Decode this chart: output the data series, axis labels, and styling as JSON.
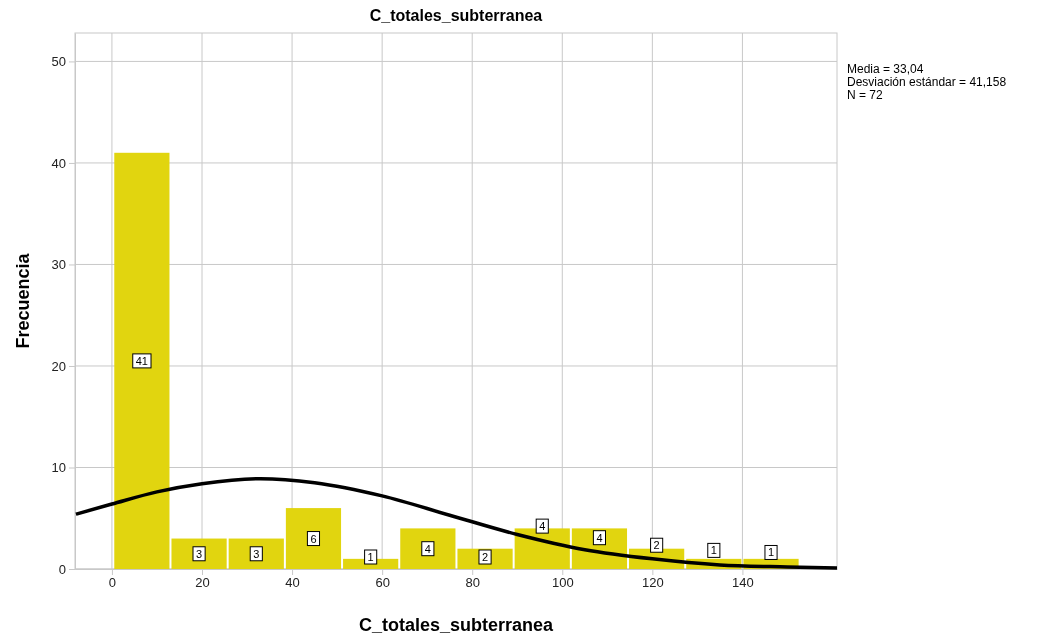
{
  "chart_data": {
    "type": "histogram",
    "title": "C_totales_subterranea",
    "xlabel": "C_totales_subterranea",
    "ylabel": "Frecuencia",
    "bins": [
      0.3,
      13,
      25.7,
      38.4,
      51.1,
      63.8,
      76.5,
      89.2,
      101.9,
      114.6,
      127.3,
      140,
      152.7
    ],
    "values": [
      41,
      3,
      3,
      6,
      1,
      4,
      2,
      4,
      4,
      2,
      1,
      1
    ],
    "color": "#e1d50f",
    "value_labels": [
      "41",
      "3",
      "3",
      "6",
      "1",
      "4",
      "2",
      "4",
      "4",
      "2",
      "1",
      "1"
    ],
    "series": [
      {
        "type": "line",
        "color": "#000000",
        "x": [
          -8,
          0,
          10,
          20,
          33,
          45,
          60,
          75,
          90,
          105,
          120,
          135,
          150,
          161
        ],
        "values": [
          5.4,
          6.4,
          7.6,
          8.4,
          8.9,
          8.5,
          7.2,
          5.3,
          3.4,
          1.9,
          1,
          0.4,
          0.2,
          0.1
        ]
      }
    ],
    "xlim": [
      -8.2,
      161
    ],
    "ylim": [
      0,
      52.8
    ],
    "xticks": [
      0,
      20,
      40,
      60,
      80,
      100,
      120,
      140
    ],
    "yticks": [
      0,
      10,
      20,
      30,
      40,
      50
    ],
    "grid": true,
    "annotations": [
      "Media = 33,04",
      "Desviación estándar = 41,158",
      "N = 72"
    ]
  }
}
